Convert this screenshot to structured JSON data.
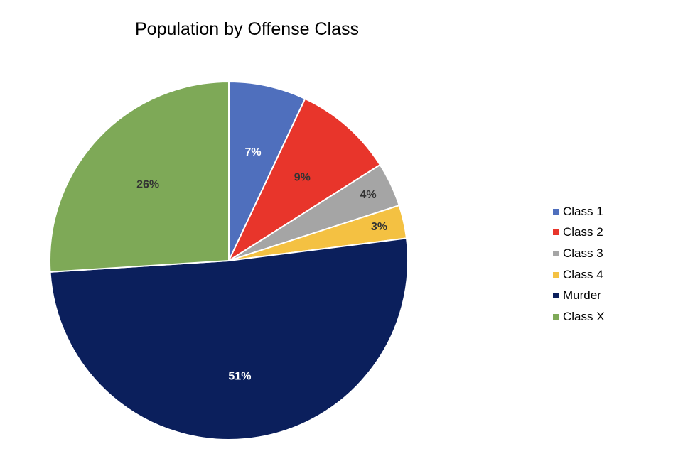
{
  "chart_data": {
    "type": "pie",
    "title": "Population by Offense Class",
    "categories": [
      "Class 1",
      "Class 2",
      "Class 3",
      "Class 4",
      "Murder",
      "Class X"
    ],
    "values": [
      7,
      9,
      4,
      3,
      51,
      26
    ],
    "labels": [
      "7%",
      "9%",
      "4%",
      "3%",
      "51%",
      "26%"
    ],
    "colors": [
      "#4f6fbd",
      "#e8352b",
      "#a5a5a5",
      "#f4c142",
      "#0b1f5c",
      "#7ea957"
    ],
    "label_colors": [
      "#ffffff",
      "#333333",
      "#333333",
      "#333333",
      "#ffffff",
      "#333333"
    ],
    "legend_position": "right"
  }
}
